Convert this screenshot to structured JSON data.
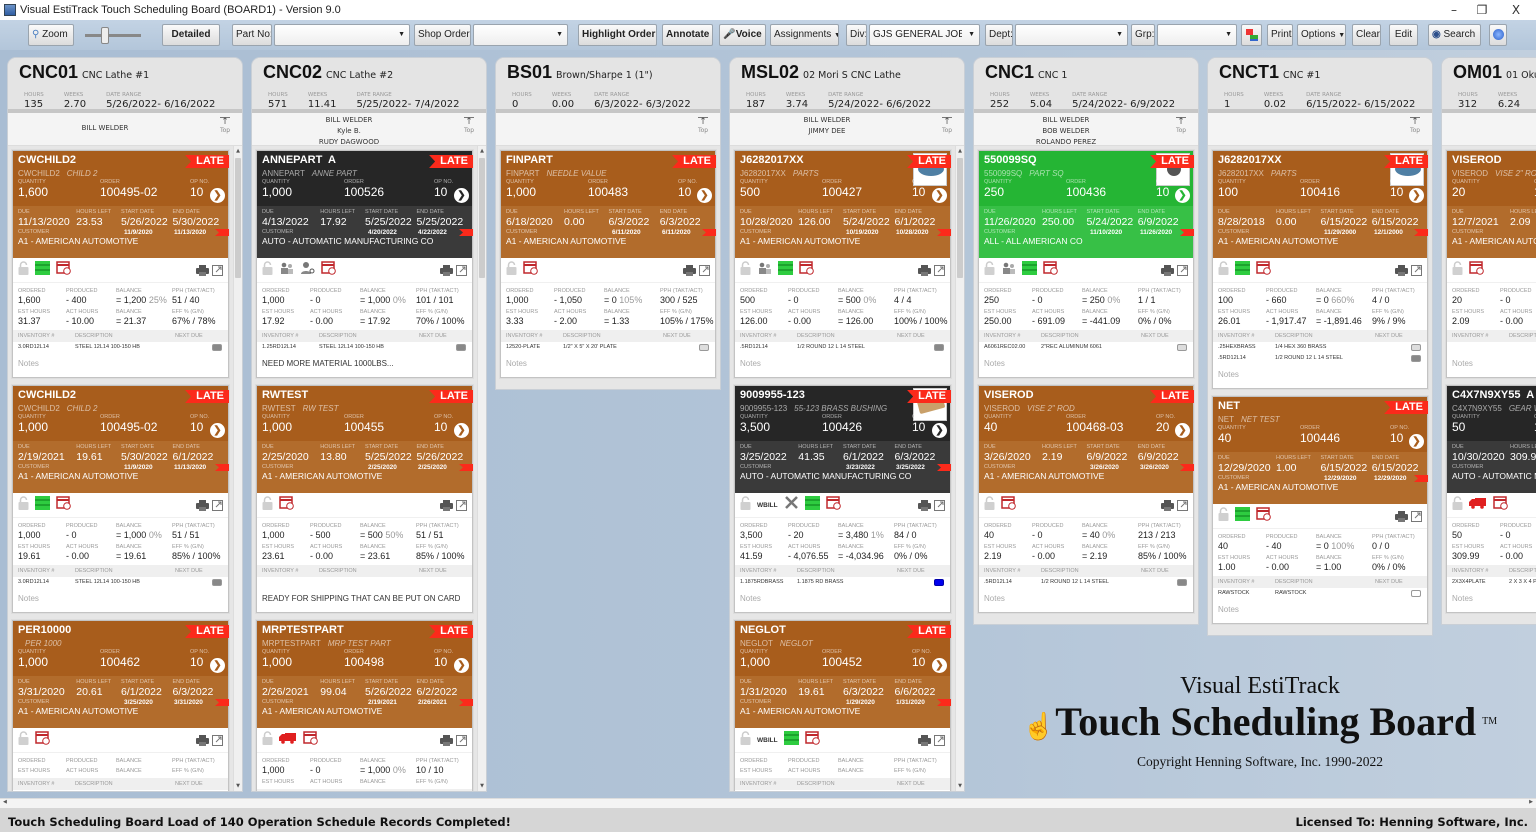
{
  "window": {
    "title": "Visual EstiTrack Touch Scheduling Board (BOARD1) - Version 9.0",
    "minimize": "–",
    "restore": "❐",
    "close": "X"
  },
  "toolbar": {
    "zoom": "Zoom",
    "zoom_slider_level": 0.35,
    "detailed": "Detailed",
    "part_no_label": "Part No:",
    "part_no_value": "",
    "shop_order_label": "Shop Order:",
    "shop_order_value": "",
    "highlight_order": "Highlight Order",
    "annotate": "Annotate",
    "voice": "Voice",
    "assignments": "Assignments",
    "div_label": "Div:",
    "div_value": "GJS GENERAL JOB SH(",
    "dept_label": "Dept:",
    "dept_value": "",
    "grp_label": "Grp:",
    "grp_value": "",
    "print": "Print",
    "options": "Options",
    "clear": "Clear",
    "edit": "Edit",
    "search": "Search"
  },
  "labels": {
    "hours": "HOURS",
    "weeks": "WEEKS",
    "date_range": "DATE RANGE",
    "top": "Top",
    "quantity": "QUANTITY",
    "order": "ORDER",
    "op_no": "OP NO.",
    "due": "DUE",
    "hours_left": "HOURS LEFT",
    "start_date": "START DATE",
    "end_date": "END DATE",
    "customer": "CUSTOMER",
    "ordered": "ORDERED",
    "produced": "PRODUCED",
    "balance": "BALANCE",
    "pph": "PPH (TAKT/ACT)",
    "est_hours": "EST HOURS",
    "act_hours": "ACT HOURS",
    "eff": "EFF % (G/N)",
    "inventory": "INVENTORY #",
    "description": "DESCRIPTION",
    "next_due": "NEXT DUE",
    "late": "LATE",
    "notes_placeholder": "Notes"
  },
  "colors": {
    "orange": "#a85d1c",
    "dark": "#262626",
    "green": "#25b534",
    "late": "#fb2a1b"
  },
  "columns": [
    {
      "code": "CNC01",
      "name": "CNC Lathe #1",
      "hours": "135",
      "weeks": "2.70",
      "range": "5/26/2022- 6/16/2022",
      "workers": [
        "BILL WELDER"
      ],
      "cards": [
        {
          "color": "orange",
          "title": "CWCHILD2",
          "part": "CWCHILD2",
          "desc": "CHILD 2",
          "qty": "1,600",
          "order": "100495-02",
          "op": "10",
          "due": "11/13/2020",
          "hours_left": "23.53",
          "start": "5/26/2022",
          "end": "5/30/2022",
          "cstart": "11/9/2020",
          "cend": "11/13/2020",
          "customer": "A1 - AMERICAN AUTOMOTIVE",
          "icons": [
            "lock",
            "stack",
            "calendar"
          ],
          "ordered": "1,600",
          "produced": "400",
          "balance": "1,200",
          "balance_pct": "25%",
          "pph": "51 / 40",
          "est": "31.37",
          "act": "10.00",
          "bal_hours": "21.37",
          "eff": "67% / 78%",
          "inventory": [
            {
              "inv": "3.0RD12L14",
              "desc": "STEEL 12L14  100-150 HB",
              "status": "gray"
            }
          ],
          "notes": ""
        },
        {
          "color": "orange",
          "title": "CWCHILD2",
          "part": "CWCHILD2",
          "desc": "CHILD 2",
          "qty": "1,000",
          "order": "100495-02",
          "op": "10",
          "due": "2/19/2021",
          "hours_left": "19.61",
          "start": "5/30/2022",
          "end": "6/1/2022",
          "cstart": "11/9/2020",
          "cend": "11/13/2020",
          "customer": "A1 - AMERICAN AUTOMOTIVE",
          "icons": [
            "lock",
            "stack",
            "calendar"
          ],
          "ordered": "1,000",
          "produced": "0",
          "balance": "1,000",
          "balance_pct": "0%",
          "pph": "51 / 51",
          "est": "19.61",
          "act": "0.00",
          "bal_hours": "19.61",
          "eff": "85% / 100%",
          "inventory": [
            {
              "inv": "3.0RD12L14",
              "desc": "STEEL 12L14  100-150 HB",
              "status": "gray"
            }
          ],
          "notes": ""
        },
        {
          "color": "orange",
          "title": "PER10000",
          "part": "",
          "desc": "PER 1000",
          "qty": "1,000",
          "order": "100462",
          "op": "10",
          "due": "3/31/2020",
          "hours_left": "20.61",
          "start": "6/1/2022",
          "end": "6/3/2022",
          "cstart": "3/25/2020",
          "cend": "3/31/2020",
          "customer": "A1 - AMERICAN AUTOMOTIVE",
          "icons": [
            "lock",
            "calendar"
          ],
          "ordered": "",
          "produced": "",
          "balance": "",
          "balance_pct": "",
          "pph": "",
          "est": "",
          "act": "",
          "bal_hours": "",
          "eff": "",
          "inventory": [],
          "notes": ""
        }
      ]
    },
    {
      "code": "CNC02",
      "name": "CNC Lathe #2",
      "hours": "571",
      "weeks": "11.41",
      "range": "5/25/2022- 7/4/2022",
      "workers": [
        "BILL WELDER",
        "Kyle B.",
        "RUDY DAGWOOD"
      ],
      "cards": [
        {
          "color": "dark",
          "title": "ANNEPART  A",
          "part": "ANNEPART",
          "desc": "ANNE PART",
          "qty": "1,000",
          "order": "100526",
          "op": "10",
          "due": "4/13/2022",
          "hours_left": "17.92",
          "start": "5/25/2022",
          "end": "5/25/2022",
          "cstart": "4/20/2022",
          "cend": "4/22/2022",
          "customer": "AUTO - AUTOMATIC MANUFACTURING CO",
          "icons": [
            "lock",
            "people",
            "person-search",
            "calendar"
          ],
          "ordered": "1,000",
          "produced": "0",
          "balance": "1,000",
          "balance_pct": "0%",
          "pph": "101 / 101",
          "est": "17.92",
          "act": "0.00",
          "bal_hours": "17.92",
          "eff": "70% / 100%",
          "inventory": [
            {
              "inv": "1.25RD12L14",
              "desc": "STEEL 12L14  100-150 HB",
              "status": "gray"
            }
          ],
          "notes": "NEED MORE MATERIAL 1000LBS..."
        },
        {
          "color": "orange",
          "title": "RWTEST",
          "part": "RWTEST",
          "desc": "RW TEST",
          "qty": "1,000",
          "order": "100455",
          "op": "10",
          "due": "2/25/2020",
          "hours_left": "13.80",
          "start": "5/25/2022",
          "end": "5/26/2022",
          "cstart": "2/25/2020",
          "cend": "2/25/2020",
          "customer": "A1 - AMERICAN AUTOMOTIVE",
          "icons": [
            "lock",
            "calendar"
          ],
          "ordered": "1,000",
          "produced": "500",
          "balance": "500",
          "balance_pct": "50%",
          "pph": "51 / 51",
          "est": "23.61",
          "act": "0.00",
          "bal_hours": "23.61",
          "eff": "85% / 100%",
          "inventory": [],
          "notes": "READY FOR SHIPPING THAT CAN BE PUT ON CARD"
        },
        {
          "color": "orange",
          "title": "MRPTESTPART",
          "part": "MRPTESTPART",
          "desc": "MRP TEST PART",
          "qty": "1,000",
          "order": "100498",
          "op": "10",
          "due": "2/26/2021",
          "hours_left": "99.04",
          "start": "5/26/2022",
          "end": "6/2/2022",
          "cstart": "2/19/2021",
          "cend": "2/26/2021",
          "customer": "A1 - AMERICAN AUTOMOTIVE",
          "icons": [
            "lock",
            "truck",
            "calendar"
          ],
          "ordered": "1,000",
          "produced": "0",
          "balance": "1,000",
          "balance_pct": "0%",
          "pph": "10 / 10",
          "est": "",
          "act": "",
          "bal_hours": "",
          "eff": "",
          "inventory": [],
          "notes": ""
        }
      ]
    },
    {
      "code": "BS01",
      "name": "Brown/Sharpe 1 (1\")",
      "hours": "0",
      "weeks": "0.00",
      "range": "6/3/2022- 6/3/2022",
      "workers": [],
      "cards": [
        {
          "color": "orange",
          "title": "FINPART",
          "part": "FINPART",
          "desc": "NEEDLE VALUE",
          "qty": "1,000",
          "order": "100483",
          "op": "10",
          "due": "6/18/2020",
          "hours_left": "0.00",
          "start": "6/3/2022",
          "end": "6/3/2022",
          "cstart": "6/11/2020",
          "cend": "6/11/2020",
          "customer": "A1 - AMERICAN AUTOMOTIVE",
          "icons": [
            "lock",
            "calendar"
          ],
          "ordered": "1,000",
          "produced": "1,050",
          "balance": "0",
          "balance_pct": "105%",
          "pph": "300 / 525",
          "est": "3.33",
          "act": "2.00",
          "bal_hours": "1.33",
          "eff": "105% / 175%",
          "inventory": [
            {
              "inv": "12520-PLATE",
              "desc": "1/2\" X 5\" X 20' PLATE",
              "status": "light"
            }
          ],
          "notes": ""
        }
      ]
    },
    {
      "code": "MSL02",
      "name": "02 Mori S CNC Lathe",
      "hours": "187",
      "weeks": "3.74",
      "range": "5/24/2022- 6/6/2022",
      "workers": [
        "BILL WELDER",
        "JIMMY DEE"
      ],
      "cards": [
        {
          "color": "orange",
          "image": "blue",
          "title": "J6282017XX",
          "part": "J6282017XX",
          "desc": "PARTS",
          "qty": "500",
          "order": "100427",
          "op": "10",
          "due": "10/28/2020",
          "hours_left": "126.00",
          "start": "5/24/2022",
          "end": "6/1/2022",
          "cstart": "10/19/2020",
          "cend": "10/28/2020",
          "customer": "A1 - AMERICAN AUTOMOTIVE",
          "icons": [
            "lock",
            "people",
            "stack",
            "calendar"
          ],
          "ordered": "500",
          "produced": "0",
          "balance": "500",
          "balance_pct": "0%",
          "pph": "4 / 4",
          "est": "126.00",
          "act": "0.00",
          "bal_hours": "126.00",
          "eff": "100% / 100%",
          "inventory": [
            {
              "inv": ".5RD12L14",
              "desc": "1/2 ROUND 12 L 14 STEEL",
              "status": "gray"
            }
          ],
          "notes": ""
        },
        {
          "color": "dark",
          "image": "brass",
          "title": "9009955-123",
          "part": "9009955-123",
          "desc": "55-123 BRASS BUSHING",
          "qty": "3,500",
          "order": "100426",
          "op": "10",
          "due": "3/25/2022",
          "hours_left": "41.35",
          "start": "6/1/2022",
          "end": "6/3/2022",
          "cstart": "3/23/2022",
          "cend": "3/25/2022",
          "customer": "AUTO - AUTOMATIC MANUFACTURING CO",
          "wbill": "WBILL",
          "icons": [
            "lock",
            "wbill",
            "tools",
            "stack",
            "calendar"
          ],
          "ordered": "3,500",
          "produced": "20",
          "balance": "3,480",
          "balance_pct": "1%",
          "pph": "84 / 0",
          "est": "41.59",
          "act": "4,076.55",
          "bal_hours": "-4,034.96",
          "eff": "0% / 0%",
          "inventory": [
            {
              "inv": "1.1875RDBRASS",
              "desc": "1.1875 RD BRASS",
              "status": "blue"
            }
          ],
          "notes": ""
        },
        {
          "color": "orange",
          "title": "NEGLOT",
          "part": "NEGLOT",
          "desc": "NEGLOT",
          "qty": "1,000",
          "order": "100452",
          "op": "10",
          "due": "1/31/2020",
          "hours_left": "19.61",
          "start": "6/3/2022",
          "end": "6/6/2022",
          "cstart": "1/29/2020",
          "cend": "1/31/2020",
          "customer": "A1 - AMERICAN AUTOMOTIVE",
          "wbill": "WBILL",
          "icons": [
            "lock",
            "wbill",
            "stack",
            "calendar"
          ],
          "ordered": "",
          "produced": "",
          "balance": "",
          "balance_pct": "",
          "pph": "",
          "est": "",
          "act": "",
          "bal_hours": "",
          "eff": "",
          "inventory": [],
          "notes": ""
        }
      ]
    },
    {
      "code": "CNC1",
      "name": "CNC 1",
      "hours": "252",
      "weeks": "5.04",
      "range": "5/24/2022- 6/9/2022",
      "workers": [
        "BILL WELDER",
        "BOB WELDER",
        "ROLANDO PEREZ"
      ],
      "cards": [
        {
          "color": "green",
          "image": "gray",
          "title": "550099SQ",
          "part": "550099SQ",
          "desc": "PART SQ",
          "qty": "250",
          "order": "100436",
          "op": "10",
          "due": "11/26/2020",
          "hours_left": "250.00",
          "start": "5/24/2022",
          "end": "6/9/2022",
          "cstart": "11/10/2020",
          "cend": "11/26/2020",
          "customer": "ALL - ALL AMERICAN CO",
          "icons": [
            "lock",
            "people",
            "stack",
            "calendar"
          ],
          "ordered": "250",
          "produced": "0",
          "balance": "250",
          "balance_pct": "0%",
          "pph": "1 / 1",
          "est": "250.00",
          "act": "691.09",
          "bal_hours": "-441.09",
          "eff": "0% / 0%",
          "inventory": [
            {
              "inv": "A6061REC02.00",
              "desc": "2\"REC ALUMINUM 6061",
              "status": "light"
            }
          ],
          "notes": ""
        },
        {
          "color": "orange",
          "title": "VISEROD",
          "part": "VISEROD",
          "desc": "VISE 2\" ROD",
          "qty": "40",
          "order": "100468-03",
          "op": "20",
          "due": "3/26/2020",
          "hours_left": "2.19",
          "start": "6/9/2022",
          "end": "6/9/2022",
          "cstart": "3/26/2020",
          "cend": "3/26/2020",
          "customer": "A1 - AMERICAN AUTOMOTIVE",
          "icons": [
            "lock",
            "calendar"
          ],
          "ordered": "40",
          "produced": "0",
          "balance": "40",
          "balance_pct": "0%",
          "pph": "213 / 213",
          "est": "2.19",
          "act": "0.00",
          "bal_hours": "2.19",
          "eff": "85% / 100%",
          "inventory": [
            {
              "inv": ".5RD12L14",
              "desc": "1/2 ROUND 12 L 14 STEEL",
              "status": "gray"
            }
          ],
          "notes": ""
        }
      ]
    },
    {
      "code": "CNCT1",
      "name": "CNC #1",
      "hours": "1",
      "weeks": "0.02",
      "range": "6/15/2022- 6/15/2022",
      "workers": [],
      "cards": [
        {
          "color": "orange",
          "image": "blue",
          "title": "J6282017XX",
          "part": "J6282017XX",
          "desc": "PARTS",
          "qty": "100",
          "order": "100416",
          "op": "10",
          "due": "8/28/2018",
          "hours_left": "0.00",
          "start": "6/15/2022",
          "end": "6/15/2022",
          "cstart": "11/29/2000",
          "cend": "12/1/2000",
          "customer": "A1 - AMERICAN AUTOMOTIVE",
          "icons": [
            "lock",
            "stack",
            "calendar"
          ],
          "ordered": "100",
          "produced": "660",
          "balance": "0",
          "balance_pct": "660%",
          "pph": "4 / 0",
          "est": "26.01",
          "act": "1,917.47",
          "bal_hours": "-1,891.46",
          "eff": "9% / 9%",
          "inventory": [
            {
              "inv": ".25HEXBRASS",
              "desc": "1/4 HEX 360 BRASS",
              "status": "light"
            },
            {
              "inv": ".5RD12L14",
              "desc": "1/2 ROUND 12 L 14 STEEL",
              "status": "gray"
            }
          ],
          "notes": ""
        },
        {
          "color": "orange",
          "title": "NET",
          "part": "NET",
          "desc": "NET TEST",
          "qty": "40",
          "order": "100446",
          "op": "10",
          "due": "12/29/2020",
          "hours_left": "1.00",
          "start": "6/15/2022",
          "end": "6/15/2022",
          "cstart": "12/29/2020",
          "cend": "12/29/2020",
          "customer": "A1 - AMERICAN AUTOMOTIVE",
          "icons": [
            "lock",
            "stack",
            "calendar"
          ],
          "ordered": "40",
          "produced": "40",
          "balance": "0",
          "balance_pct": "100%",
          "pph": "0 / 0",
          "est": "1.00",
          "act": "0.00",
          "bal_hours": "1.00",
          "eff": "0% / 0%",
          "inventory": [
            {
              "inv": "RAWSTOCK",
              "desc": "RAWSTOCK",
              "status": "empty"
            }
          ],
          "notes": ""
        }
      ]
    },
    {
      "code": "OM01",
      "name": "01 Oku",
      "hours": "312",
      "weeks": "6.24",
      "range": "",
      "workers": [],
      "cards": [
        {
          "color": "orange",
          "nolate": true,
          "title": "VISEROD",
          "part": "VISEROD",
          "desc": "VISE 2\" ROD",
          "qty": "20",
          "order": "1",
          "op": "",
          "due": "12/7/2021",
          "hours_left": "2.09",
          "start": "",
          "end": "",
          "cstart": "",
          "cend": "",
          "customer": "A1 - AMERICAN AUTO",
          "icons": [
            "lock",
            "calendar"
          ],
          "ordered": "20",
          "produced": "0",
          "balance": "",
          "balance_pct": "",
          "pph": "",
          "est": "2.09",
          "act": "0.00",
          "bal_hours": "",
          "eff": "",
          "inventory": [],
          "notes": ""
        },
        {
          "color": "dark",
          "nolate": true,
          "title": "C4X7N9XY55  A",
          "part": "C4X7N9XY55",
          "desc": "GEAR W",
          "qty": "50",
          "order": "1",
          "op": "",
          "due": "10/30/2020",
          "hours_left": "309.99",
          "start": "",
          "end": "",
          "cstart": "",
          "cend": "",
          "customer": "AUTO - AUTOMATIC M",
          "icons": [
            "lock",
            "truck",
            "calendar"
          ],
          "ordered": "50",
          "produced": "0",
          "balance": "",
          "balance_pct": "",
          "pph": "",
          "est": "309.99",
          "act": "0.00",
          "bal_hours": "",
          "eff": "",
          "inventory": [
            {
              "inv": "2X3X4PLATE",
              "desc": "2 X 3 X 4 PL",
              "status": ""
            }
          ],
          "notes": ""
        }
      ]
    }
  ],
  "logo": {
    "line1": "Visual EstiTrack",
    "line2": "Touch Scheduling Board",
    "tm": "TM",
    "copyright": "Copyright Henning Software, Inc. 1990-2022"
  },
  "status": {
    "message": "Touch Scheduling Board Load of 140 Operation Schedule Records Completed!",
    "license": "Licensed To: Henning Software, Inc."
  }
}
